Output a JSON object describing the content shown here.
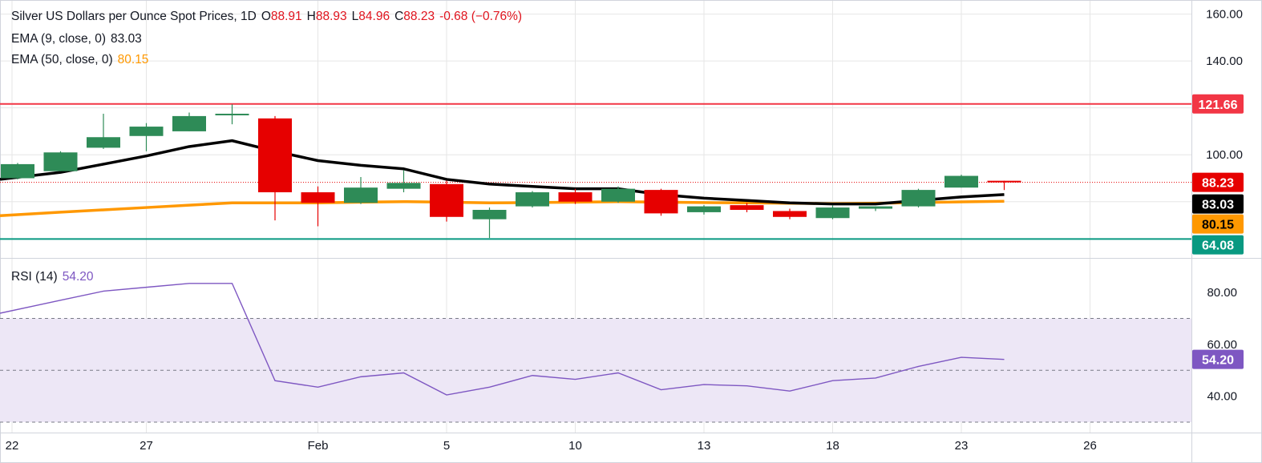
{
  "colors": {
    "up": "#2e8b57",
    "down": "#e60000",
    "ema9": "#000000",
    "ema50": "#ff9800",
    "resistance": "#f23645",
    "support": "#089981",
    "rsi": "#7e57c2",
    "rsi_band": "#ede7f6",
    "grid": "#e6e6e6",
    "text": "#131722"
  },
  "header": {
    "title": "Silver US Dollars per Ounce Spot Prices, 1D",
    "open_label": "O",
    "open": "88.91",
    "high_label": "H",
    "high": "88.93",
    "low_label": "L",
    "low": "84.96",
    "close_label": "C",
    "close": "88.23",
    "change": "-0.68 (−0.76%)",
    "ema9_label": "EMA (9, close, 0)",
    "ema9_value": "83.03",
    "ema50_label": "EMA (50, close, 0)",
    "ema50_value": "80.15",
    "rsi_label": "RSI (14)",
    "rsi_value": "54.20"
  },
  "chart_data": {
    "type": "candlestick",
    "price_axis": {
      "ticks": [
        "160.00",
        "140.00",
        "100.00"
      ],
      "tick_values": [
        160,
        140,
        100
      ],
      "ylim": [
        56.0,
        166.0
      ]
    },
    "x_axis": {
      "ticks": [
        "22",
        "27",
        "Feb",
        "5",
        "10",
        "13",
        "18",
        "23",
        "26"
      ],
      "tick_index": [
        0,
        3,
        7,
        10,
        13,
        16,
        19,
        22,
        25
      ]
    },
    "candles": [
      {
        "i": 0,
        "o": 90.0,
        "h": 96.5,
        "l": 89.5,
        "c": 96.0
      },
      {
        "i": 1,
        "o": 93.0,
        "h": 101.5,
        "l": 93.0,
        "c": 101.0
      },
      {
        "i": 2,
        "o": 103.0,
        "h": 117.5,
        "l": 102.5,
        "c": 107.5
      },
      {
        "i": 3,
        "o": 108.0,
        "h": 113.5,
        "l": 101.5,
        "c": 112.0
      },
      {
        "i": 4,
        "o": 110.0,
        "h": 118.0,
        "l": 110.0,
        "c": 116.5
      },
      {
        "i": 5,
        "o": 117.0,
        "h": 121.5,
        "l": 113.0,
        "c": 117.5
      },
      {
        "i": 6,
        "o": 115.5,
        "h": 116.5,
        "l": 72.0,
        "c": 84.0
      },
      {
        "i": 7,
        "o": 84.0,
        "h": 86.5,
        "l": 69.5,
        "c": 79.5
      },
      {
        "i": 8,
        "o": 79.5,
        "h": 90.5,
        "l": 79.0,
        "c": 86.0
      },
      {
        "i": 9,
        "o": 85.5,
        "h": 93.5,
        "l": 84.0,
        "c": 88.0
      },
      {
        "i": 10,
        "o": 87.5,
        "h": 89.0,
        "l": 71.5,
        "c": 73.5
      },
      {
        "i": 11,
        "o": 72.5,
        "h": 77.5,
        "l": 64.5,
        "c": 76.5
      },
      {
        "i": 12,
        "o": 78.0,
        "h": 84.5,
        "l": 77.5,
        "c": 84.0
      },
      {
        "i": 13,
        "o": 84.0,
        "h": 85.5,
        "l": 79.0,
        "c": 80.0
      },
      {
        "i": 14,
        "o": 80.0,
        "h": 86.5,
        "l": 79.5,
        "c": 85.5
      },
      {
        "i": 15,
        "o": 85.0,
        "h": 85.5,
        "l": 74.0,
        "c": 75.0
      },
      {
        "i": 16,
        "o": 75.5,
        "h": 78.5,
        "l": 74.5,
        "c": 78.0
      },
      {
        "i": 17,
        "o": 78.5,
        "h": 79.5,
        "l": 75.5,
        "c": 76.5
      },
      {
        "i": 18,
        "o": 76.0,
        "h": 77.0,
        "l": 72.5,
        "c": 73.5
      },
      {
        "i": 19,
        "o": 73.0,
        "h": 78.5,
        "l": 72.5,
        "c": 77.5
      },
      {
        "i": 20,
        "o": 77.0,
        "h": 78.0,
        "l": 76.0,
        "c": 78.0
      },
      {
        "i": 21,
        "o": 78.0,
        "h": 85.5,
        "l": 77.5,
        "c": 85.0
      },
      {
        "i": 22,
        "o": 86.0,
        "h": 91.5,
        "l": 86.0,
        "c": 91.0
      },
      {
        "i": 23,
        "o": 88.91,
        "h": 88.93,
        "l": 84.96,
        "c": 88.23
      }
    ],
    "ema9": [
      89.5,
      92.5,
      96.0,
      99.5,
      103.5,
      106.0,
      101.5,
      97.5,
      95.5,
      94.0,
      89.5,
      87.5,
      86.5,
      85.5,
      85.5,
      83.0,
      81.5,
      80.5,
      79.5,
      79.0,
      79.0,
      80.5,
      82.0,
      83.03
    ],
    "ema50": [
      74.0,
      75.5,
      76.5,
      77.5,
      78.5,
      79.5,
      79.5,
      79.5,
      79.8,
      80.0,
      79.8,
      79.5,
      79.6,
      79.8,
      80.0,
      79.8,
      79.6,
      79.5,
      79.3,
      79.2,
      79.3,
      79.6,
      79.9,
      80.15
    ],
    "levels": [
      {
        "name": "resistance",
        "value": 121.66,
        "label": "121.66"
      },
      {
        "name": "support",
        "value": 64.08,
        "label": "64.08"
      }
    ],
    "price_badges": [
      {
        "name": "close",
        "value": 88.23,
        "label": "88.23"
      },
      {
        "name": "ema9",
        "value": 83.03,
        "label": "83.03"
      },
      {
        "name": "ema50",
        "value": 80.15,
        "label": "80.15"
      }
    ],
    "rsi": {
      "ylim": [
        26.0,
        93.0
      ],
      "ticks": [
        "80.00",
        "60.00",
        "40.00"
      ],
      "tick_values": [
        80,
        60,
        40
      ],
      "band": [
        30,
        70
      ],
      "midline": 50,
      "values": [
        72,
        77,
        80.5,
        82,
        83.5,
        83.5,
        46,
        43.5,
        47.5,
        49,
        40.5,
        43.5,
        48,
        46.5,
        49,
        42.5,
        44.5,
        44,
        42,
        46,
        47,
        51.5,
        55,
        54.2
      ],
      "badge": "54.20"
    }
  }
}
